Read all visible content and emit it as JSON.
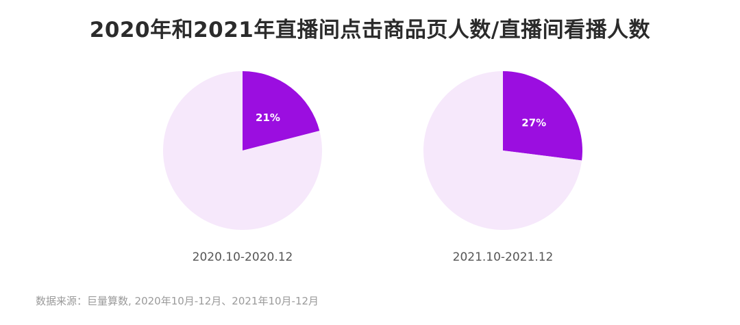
{
  "chart_title": "2020年和2021年直播间点击商品页人数/直播间看播人数",
  "source_note": "数据来源：巨量算数, 2020年10月-12月、2021年10月-12月",
  "colors": {
    "highlight": "#9b0ee0",
    "remainder": "#f6e8fb",
    "label_text": "#ffffff"
  },
  "chart_data": [
    {
      "type": "pie",
      "period": "2020.10-2020.12",
      "slices": [
        {
          "value": 21,
          "label": "21%",
          "color": "#9b0ee0"
        },
        {
          "value": 79,
          "label": "",
          "color": "#f6e8fb"
        }
      ]
    },
    {
      "type": "pie",
      "period": "2021.10-2021.12",
      "slices": [
        {
          "value": 27,
          "label": "27%",
          "color": "#9b0ee0"
        },
        {
          "value": 73,
          "label": "",
          "color": "#f6e8fb"
        }
      ]
    }
  ]
}
